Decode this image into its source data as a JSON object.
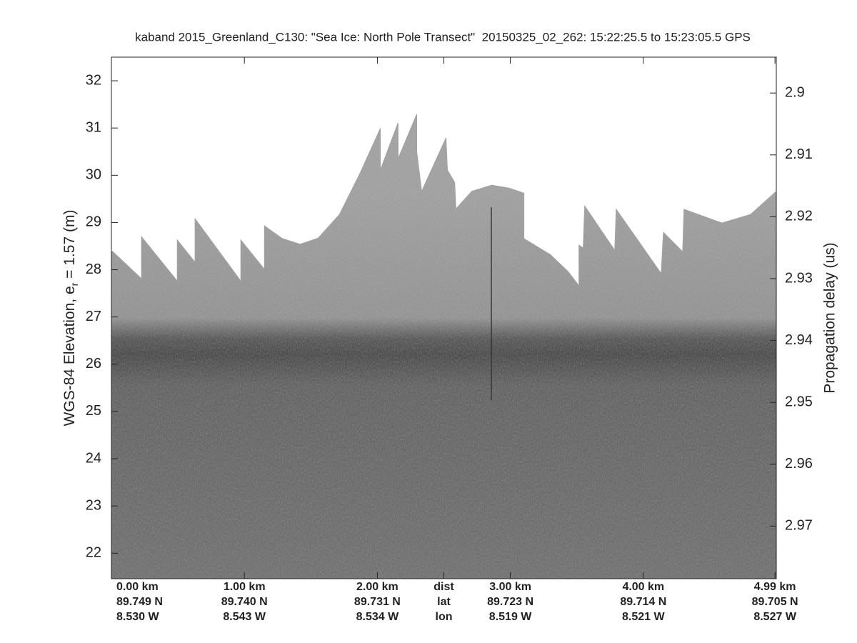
{
  "chart_data": {
    "type": "echogram",
    "title": "kaband 2015_Greenland_C130: \"Sea Ice: North Pole Transect\"  20150325_02_262: 15:22:25.5 to 15:23:05.5 GPS",
    "y_label": "WGS-84 Elevation, e",
    "y_label_sub": "r",
    "y_label_rest": " = 1.57 (m)",
    "y2_label": "Propagation delay (us)",
    "xlim": [
      0,
      5.0
    ],
    "xticks": [
      {
        "value": 0,
        "label": "0.00 km"
      },
      {
        "value": 1,
        "label": "1.00 km"
      },
      {
        "value": 2,
        "label": "2.00 km"
      },
      {
        "value": 2.5,
        "label": "dist"
      },
      {
        "value": 3,
        "label": "3.00 km"
      },
      {
        "value": 4,
        "label": "4.00 km"
      },
      {
        "value": 4.99,
        "label": "4.99 km"
      }
    ],
    "xtick_lat": [
      "89.749 N",
      "89.740 N",
      "89.731 N",
      "lat",
      "89.723 N",
      "89.714 N",
      "89.705 N"
    ],
    "xtick_lon": [
      "8.530 W",
      "8.543 W",
      "8.534 W",
      "lon",
      "8.519 W",
      "8.521 W",
      "8.527 W"
    ],
    "ylim": [
      21.46,
      32.5
    ],
    "yticks": [
      22,
      23,
      24,
      25,
      26,
      27,
      28,
      29,
      30,
      31,
      32
    ],
    "y2lim": [
      2.9785,
      2.8942
    ],
    "y2ticks": [
      2.9,
      2.91,
      2.92,
      2.93,
      2.94,
      2.95,
      2.96,
      2.97
    ],
    "surface": {
      "x": [
        0,
        0.226,
        0.226,
        0.495,
        0.495,
        0.629,
        0.629,
        0.973,
        0.973,
        1.151,
        1.151,
        1.285,
        1.419,
        1.554,
        1.715,
        1.876,
        2.022,
        2.022,
        2.156,
        2.156,
        2.296,
        2.296,
        2.333,
        2.516,
        2.527,
        2.581,
        2.591,
        2.71,
        2.86,
        2.989,
        3.102,
        3.102,
        3.301,
        3.435,
        3.516,
        3.516,
        3.548,
        3.559,
        3.785,
        3.796,
        4.134,
        4.151,
        4.296,
        4.306,
        4.591,
        4.806,
        5.0
      ],
      "values": [
        28.41,
        27.81,
        28.7,
        27.76,
        28.63,
        28.16,
        29.08,
        27.76,
        28.63,
        28.01,
        28.93,
        28.66,
        28.54,
        28.67,
        29.17,
        30.08,
        30.99,
        30.11,
        31.11,
        30.35,
        31.29,
        30.5,
        29.66,
        30.79,
        30.11,
        29.85,
        29.29,
        29.66,
        29.79,
        29.73,
        29.62,
        28.66,
        28.32,
        27.96,
        27.66,
        28.52,
        28.46,
        29.35,
        28.41,
        29.28,
        27.92,
        28.79,
        28.38,
        29.28,
        28.99,
        29.17,
        29.66
      ]
    }
  }
}
